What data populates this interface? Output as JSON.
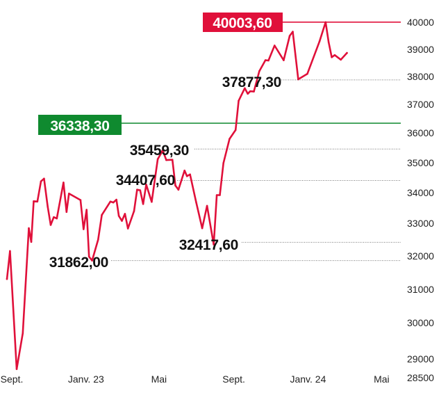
{
  "chart_data": {
    "type": "line",
    "title": "",
    "xlabel": "",
    "ylabel": "",
    "ylim": [
      28500,
      40200
    ],
    "y_ticks": [
      {
        "value": 40000,
        "label": "40000"
      },
      {
        "value": 39000,
        "label": "39000"
      },
      {
        "value": 38000,
        "label": "38000"
      },
      {
        "value": 37000,
        "label": "37000"
      },
      {
        "value": 36000,
        "label": "36000"
      },
      {
        "value": 35000,
        "label": "35000"
      },
      {
        "value": 34000,
        "label": "34000"
      },
      {
        "value": 33000,
        "label": "33000"
      },
      {
        "value": 32000,
        "label": "32000"
      },
      {
        "value": 31000,
        "label": "31000"
      },
      {
        "value": 30000,
        "label": "30000"
      },
      {
        "value": 29000,
        "label": "29000"
      },
      {
        "value": 28500,
        "label": "28500"
      }
    ],
    "x_ticks": [
      {
        "value": "2022-09-01",
        "label": "Sept."
      },
      {
        "value": "2023-01-01",
        "label": "Janv. 23"
      },
      {
        "value": "2023-05-01",
        "label": "Mai"
      },
      {
        "value": "2023-09-01",
        "label": "Sept."
      },
      {
        "value": "2024-01-01",
        "label": "Janv. 24"
      },
      {
        "value": "2024-05-01",
        "label": "Mai"
      }
    ],
    "x_range": [
      "2022-08-24",
      "2024-05-20"
    ],
    "series": [
      {
        "color": "#e0103a",
        "points": [
          [
            "2022-08-24",
            31310
          ],
          [
            "2022-08-29",
            32150
          ],
          [
            "2022-09-09",
            28720
          ],
          [
            "2022-09-19",
            29710
          ],
          [
            "2022-09-29",
            32850
          ],
          [
            "2022-10-03",
            32430
          ],
          [
            "2022-10-07",
            33720
          ],
          [
            "2022-10-13",
            33710
          ],
          [
            "2022-10-19",
            34380
          ],
          [
            "2022-10-24",
            34470
          ],
          [
            "2022-10-30",
            33540
          ],
          [
            "2022-11-04",
            32950
          ],
          [
            "2022-11-09",
            33200
          ],
          [
            "2022-11-14",
            33160
          ],
          [
            "2022-11-25",
            34340
          ],
          [
            "2022-11-30",
            33370
          ],
          [
            "2022-12-04",
            33970
          ],
          [
            "2022-12-23",
            33760
          ],
          [
            "2022-12-28",
            32820
          ],
          [
            "2023-01-02",
            33440
          ],
          [
            "2023-01-06",
            31980
          ],
          [
            "2023-01-11",
            31862
          ],
          [
            "2023-01-21",
            32500
          ],
          [
            "2023-01-27",
            33270
          ],
          [
            "2023-02-10",
            33710
          ],
          [
            "2023-02-15",
            33680
          ],
          [
            "2023-02-20",
            33770
          ],
          [
            "2023-02-24",
            33240
          ],
          [
            "2023-03-01",
            33080
          ],
          [
            "2023-03-06",
            33310
          ],
          [
            "2023-03-11",
            32840
          ],
          [
            "2023-03-21",
            33400
          ],
          [
            "2023-03-26",
            34100
          ],
          [
            "2023-03-31",
            34080
          ],
          [
            "2023-04-05",
            33630
          ],
          [
            "2023-04-10",
            34270
          ],
          [
            "2023-04-19",
            33700
          ],
          [
            "2023-04-29",
            35120
          ],
          [
            "2023-05-04",
            35300
          ],
          [
            "2023-05-07",
            35420
          ],
          [
            "2023-05-13",
            35090
          ],
          [
            "2023-05-23",
            35100
          ],
          [
            "2023-05-28",
            34240
          ],
          [
            "2023-06-02",
            34100
          ],
          [
            "2023-06-12",
            34740
          ],
          [
            "2023-06-16",
            34550
          ],
          [
            "2023-06-21",
            34610
          ],
          [
            "2023-07-01",
            33700
          ],
          [
            "2023-07-11",
            32850
          ],
          [
            "2023-07-19",
            33570
          ],
          [
            "2023-07-30",
            32350
          ],
          [
            "2023-08-04",
            33920
          ],
          [
            "2023-08-09",
            33920
          ],
          [
            "2023-08-15",
            34990
          ],
          [
            "2023-08-25",
            35800
          ],
          [
            "2023-09-04",
            36100
          ],
          [
            "2023-09-09",
            37130
          ],
          [
            "2023-09-19",
            37580
          ],
          [
            "2023-09-24",
            37380
          ],
          [
            "2023-09-28",
            37470
          ],
          [
            "2023-10-04",
            37460
          ],
          [
            "2023-10-13",
            38200
          ],
          [
            "2023-10-23",
            38600
          ],
          [
            "2023-10-28",
            38590
          ],
          [
            "2023-11-07",
            39140
          ],
          [
            "2023-11-22",
            38600
          ],
          [
            "2023-12-02",
            39500
          ],
          [
            "2023-12-07",
            39650
          ],
          [
            "2023-12-16",
            37900
          ],
          [
            "2023-12-31",
            38100
          ],
          [
            "2024-01-20",
            39300
          ],
          [
            "2024-01-30",
            40003.6
          ],
          [
            "2024-02-04",
            39260
          ],
          [
            "2024-02-09",
            38710
          ],
          [
            "2024-02-14",
            38790
          ],
          [
            "2024-02-24",
            38620
          ],
          [
            "2024-03-05",
            38870
          ]
        ]
      }
    ],
    "reference_lines": [
      {
        "value": 40003.6,
        "label": "40003,60",
        "style": "solid",
        "color": "#e0103a",
        "label_style": "badge"
      },
      {
        "value": 36338.3,
        "label": "36338,30",
        "style": "solid",
        "color": "#0f8a2f",
        "label_style": "badge"
      },
      {
        "value": 37877.3,
        "label": "37877,30",
        "style": "dotted",
        "color": "#777777",
        "label_style": "text"
      },
      {
        "value": 35459.3,
        "label": "35459,30",
        "style": "dotted",
        "color": "#777777",
        "label_style": "text"
      },
      {
        "value": 34407.6,
        "label": "34407,60",
        "style": "dotted",
        "color": "#777777",
        "label_style": "text"
      },
      {
        "value": 32417.6,
        "label": "32417,60",
        "style": "dotted",
        "color": "#777777",
        "label_style": "text"
      },
      {
        "value": 31862.0,
        "label": "31862,00",
        "style": "dotted",
        "color": "#777777",
        "label_style": "text"
      }
    ],
    "grid": false,
    "legend": "none"
  }
}
